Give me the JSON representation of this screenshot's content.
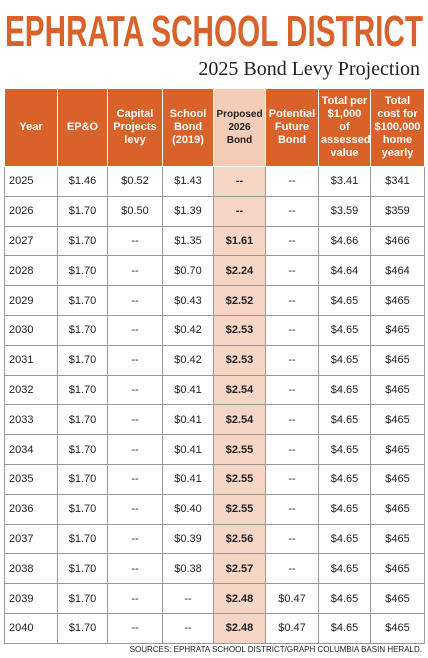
{
  "header": {
    "title": "EPHRATA SCHOOL DISTRICT",
    "subtitle": "2025 Bond Levy Projection"
  },
  "table": {
    "columns": [
      "Year",
      "EP&O",
      "Capital Projects levy",
      "School Bond (2019)",
      "Proposed 2026 Bond",
      "Potential Future Bond",
      "Total per $1,000 of assessed value",
      "Total cost for $100,000 home yearly"
    ],
    "rows": [
      [
        "2025",
        "$1.46",
        "$0.52",
        "$1.43",
        "--",
        "--",
        "$3.41",
        "$341"
      ],
      [
        "2026",
        "$1.70",
        "$0.50",
        "$1.39",
        "--",
        "--",
        "$3.59",
        "$359"
      ],
      [
        "2027",
        "$1.70",
        "--",
        "$1.35",
        "$1.61",
        "--",
        "$4.66",
        "$466"
      ],
      [
        "2028",
        "$1.70",
        "--",
        "$0.70",
        "$2.24",
        "--",
        "$4.64",
        "$464"
      ],
      [
        "2029",
        "$1.70",
        "--",
        "$0.43",
        "$2.52",
        "--",
        "$4.65",
        "$465"
      ],
      [
        "2030",
        "$1.70",
        "--",
        "$0.42",
        "$2.53",
        "--",
        "$4.65",
        "$465"
      ],
      [
        "2031",
        "$1.70",
        "--",
        "$0.42",
        "$2.53",
        "--",
        "$4.65",
        "$465"
      ],
      [
        "2032",
        "$1.70",
        "--",
        "$0.41",
        "$2.54",
        "--",
        "$4.65",
        "$465"
      ],
      [
        "2033",
        "$1.70",
        "--",
        "$0.41",
        "$2.54",
        "--",
        "$4.65",
        "$465"
      ],
      [
        "2034",
        "$1.70",
        "--",
        "$0.41",
        "$2.55",
        "--",
        "$4.65",
        "$465"
      ],
      [
        "2035",
        "$1.70",
        "--",
        "$0.41",
        "$2.55",
        "--",
        "$4.65",
        "$465"
      ],
      [
        "2036",
        "$1.70",
        "--",
        "$0.40",
        "$2.55",
        "--",
        "$4.65",
        "$465"
      ],
      [
        "2037",
        "$1.70",
        "--",
        "$0.39",
        "$2.56",
        "--",
        "$4.65",
        "$465"
      ],
      [
        "2038",
        "$1.70",
        "--",
        "$0.38",
        "$2.57",
        "--",
        "$4.65",
        "$465"
      ],
      [
        "2039",
        "$1.70",
        "--",
        "--",
        "$2.48",
        "$0.47",
        "$4.65",
        "$465"
      ],
      [
        "2040",
        "$1.70",
        "--",
        "--",
        "$2.48",
        "$0.47",
        "$4.65",
        "$465"
      ]
    ]
  },
  "source": "SOURCES: EPHRATA SCHOOL DISTRICT/GRAPH COLUMBIA BASIN HERALD."
}
